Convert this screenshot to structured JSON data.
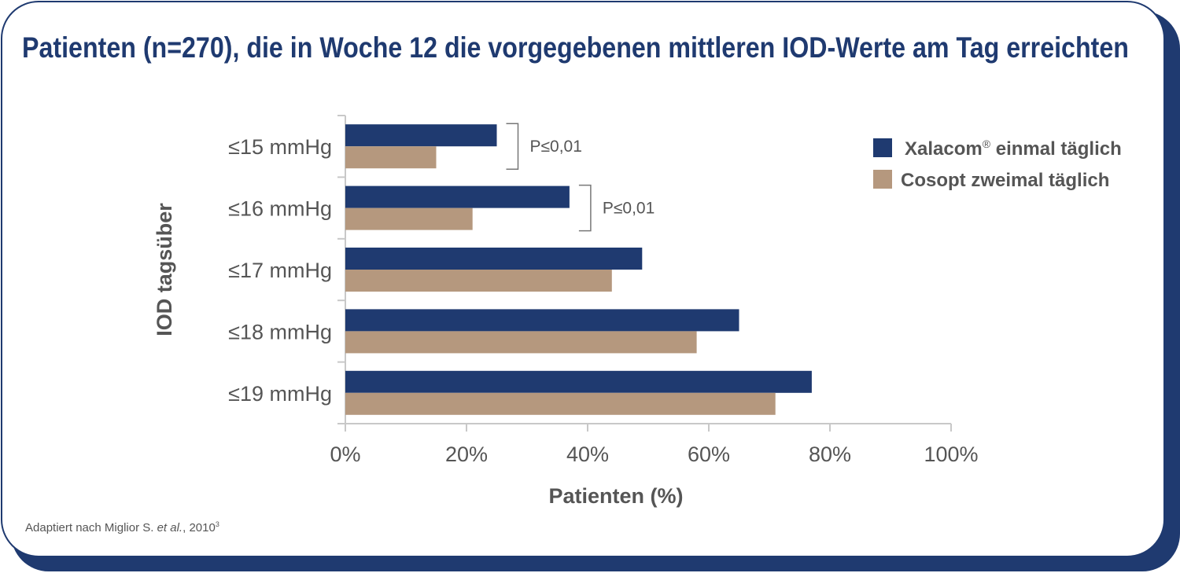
{
  "title": "Patienten (n=270), die in Woche 12 die vorgegebenen mittleren IOD-Werte am Tag erreichten",
  "footnote": {
    "text": "Adaptiert nach Miglior S. ",
    "italic": "et al.",
    "year": ", 2010",
    "sup": "3"
  },
  "chart_data": {
    "type": "bar",
    "orientation": "horizontal",
    "title": "Patienten (n=270), die in Woche 12 die vorgegebenen mittleren IOD-Werte am Tag erreichten",
    "categories": [
      "≤15 mmHg",
      "≤16 mmHg",
      "≤17 mmHg",
      "≤18 mmHg",
      "≤19 mmHg"
    ],
    "series": [
      {
        "name": "Xalacom",
        "name_sup": "®",
        "name_suffix": " einmal täglich",
        "color": "#1f3a70",
        "values": [
          25,
          37,
          49,
          65,
          77
        ]
      },
      {
        "name": "Cosopt zweimal täglich",
        "name_sup": "",
        "name_suffix": "",
        "color": "#b5987e",
        "values": [
          15,
          21,
          44,
          58,
          71
        ]
      }
    ],
    "xlabel": "Patienten (%)",
    "ylabel": "IOD tagsüber",
    "xlim": [
      0,
      100
    ],
    "xticks": [
      "0%",
      "20%",
      "40%",
      "60%",
      "80%",
      "100%"
    ],
    "annotations": [
      {
        "category_index": 0,
        "text": "P≤0,01"
      },
      {
        "category_index": 1,
        "text": "P≤0,01"
      }
    ],
    "grid": false,
    "legend": "top-right"
  }
}
